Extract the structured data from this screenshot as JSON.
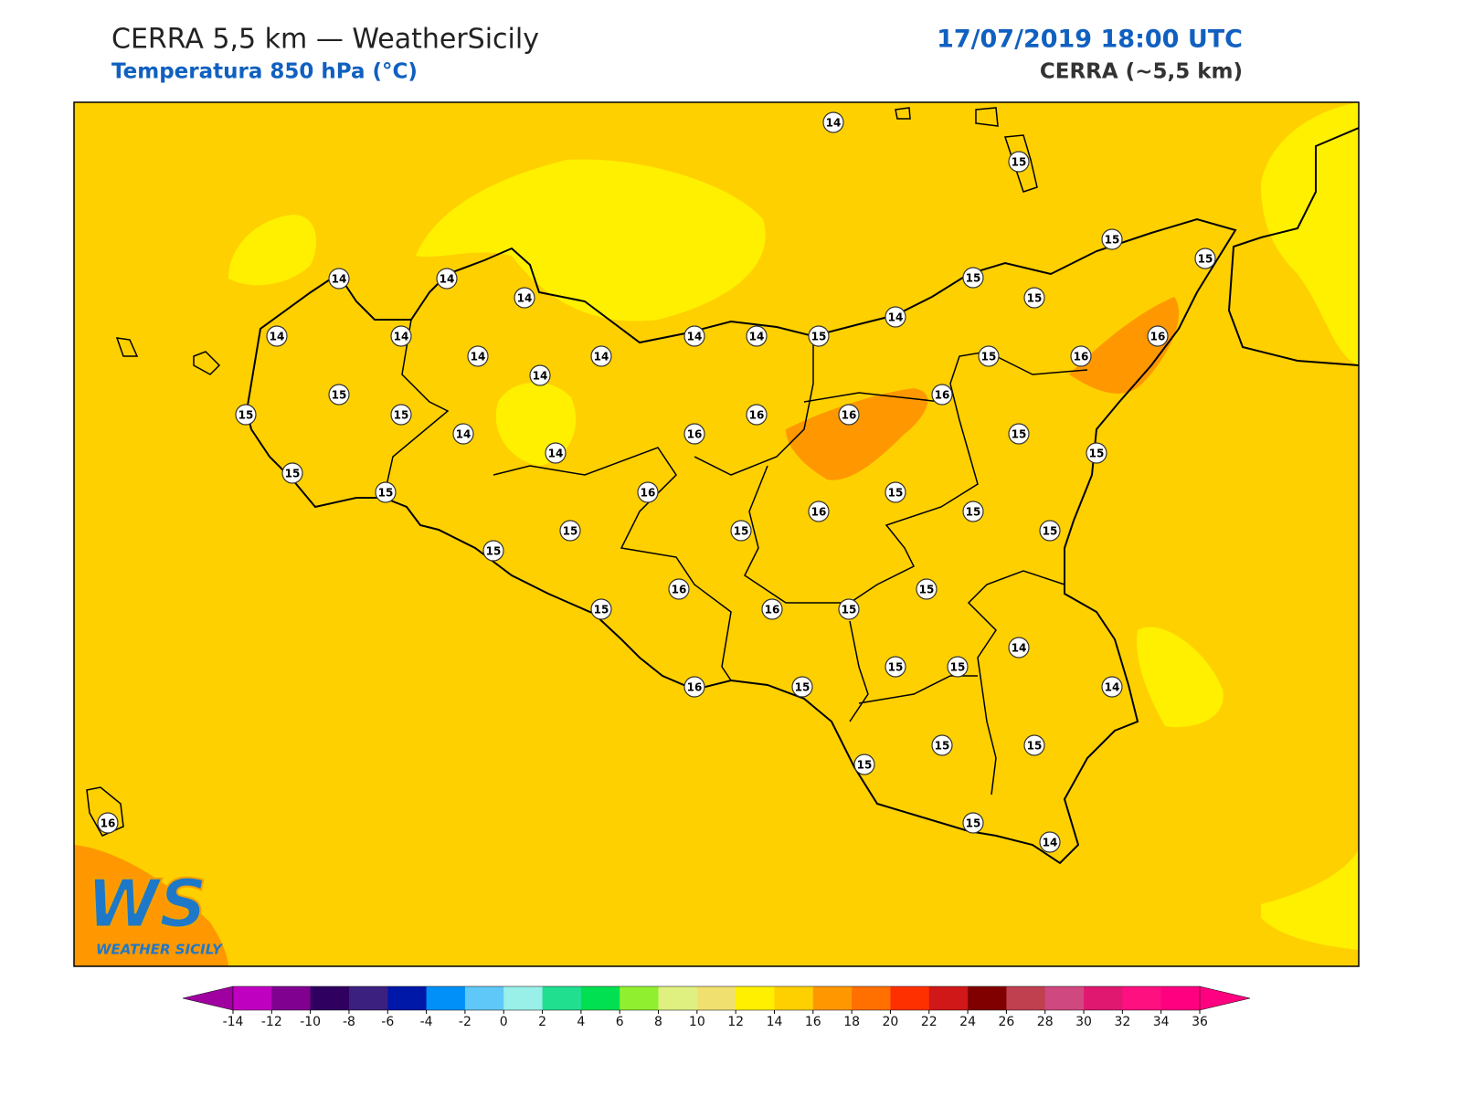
{
  "header": {
    "title": "CERRA 5,5 km — WeatherSicily",
    "subtitle": "Temperatura 850 hPa (°C)",
    "datetime": "17/07/2019 18:00 UTC",
    "model": "CERRA (~5,5 km)"
  },
  "map": {
    "stations": [
      14,
      15,
      15,
      15,
      14,
      14,
      14,
      15,
      15,
      14,
      14,
      14,
      14,
      14,
      15,
      15,
      16,
      16,
      14,
      14,
      14,
      15,
      16,
      15,
      15,
      16,
      16,
      14,
      16,
      15,
      14,
      15,
      15,
      15,
      16,
      15,
      16,
      15,
      15,
      15,
      15,
      15,
      16,
      15,
      15,
      16,
      15,
      14,
      15,
      15,
      14,
      16,
      15,
      15,
      15,
      15,
      15,
      14,
      16
    ]
  },
  "logo": {
    "mark": "WS",
    "text": "WEATHER SICILY"
  },
  "colorbar": {
    "ticks": [
      -14,
      -12,
      -10,
      -8,
      -6,
      -4,
      -2,
      0,
      2,
      4,
      6,
      8,
      10,
      12,
      14,
      16,
      18,
      20,
      22,
      24,
      26,
      28,
      30,
      32,
      34,
      36
    ],
    "colors": [
      "#c000c0",
      "#800090",
      "#300060",
      "#3c2080",
      "#0018a8",
      "#0090f8",
      "#60c8f8",
      "#98f0e8",
      "#20e090",
      "#00e050",
      "#90f030",
      "#e0f080",
      "#f0e070",
      "#fff000",
      "#ffd000",
      "#ff9800",
      "#ff7000",
      "#ff3000",
      "#d01818",
      "#800000",
      "#c04050",
      "#d04880",
      "#e01870",
      "#ff1080",
      "#ff0080"
    ],
    "under_color": "#a000a0",
    "over_color": "#ff0080"
  }
}
